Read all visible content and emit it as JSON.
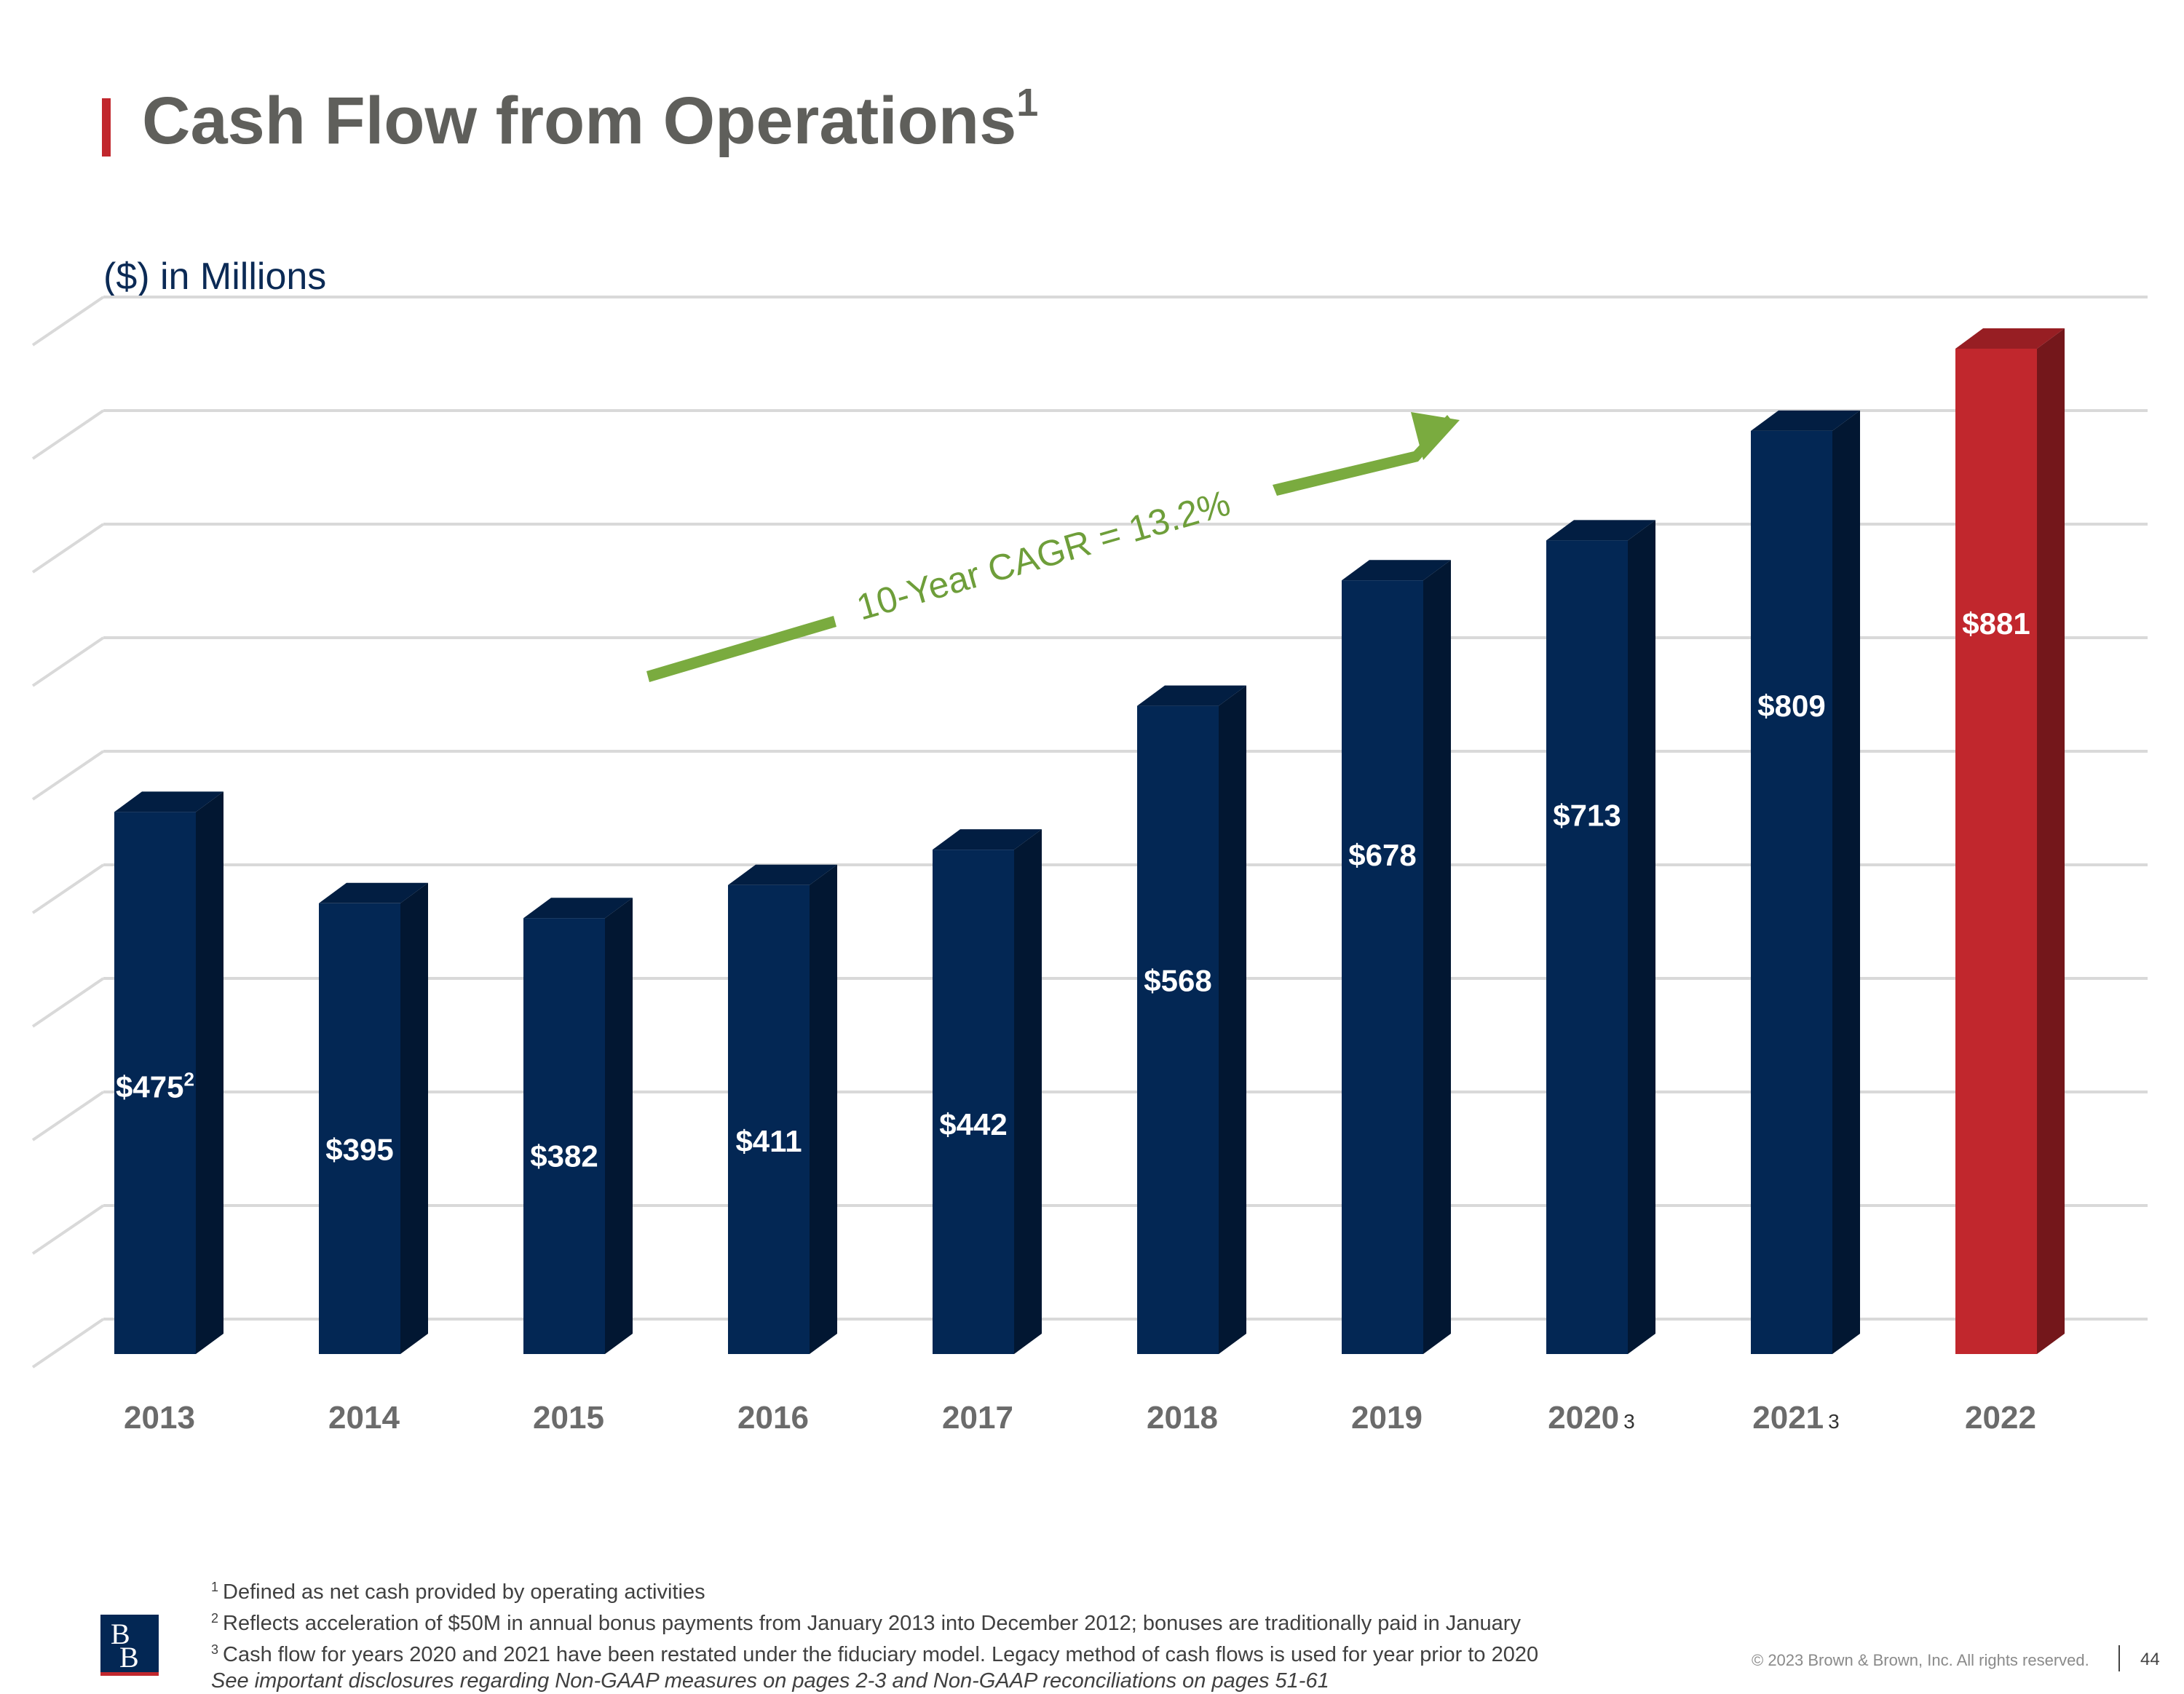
{
  "slide": {
    "title": "Cash Flow from Operations",
    "title_sup": "1",
    "units": "($) in Millions",
    "accent_color": "#c1272d"
  },
  "chart_data": {
    "type": "bar",
    "title": "Cash Flow from Operations",
    "ylabel": "($) in Millions",
    "categories": [
      "2013",
      "2014",
      "2015",
      "2016",
      "2017",
      "2018",
      "2019",
      "2020",
      "2021",
      "2022"
    ],
    "category_superscripts": [
      "",
      "",
      "",
      "",
      "",
      "",
      "",
      "3",
      "3",
      ""
    ],
    "values": [
      475,
      395,
      382,
      411,
      442,
      568,
      678,
      713,
      809,
      881
    ],
    "value_labels": [
      "$475",
      "$395",
      "$382",
      "$411",
      "$442",
      "$568",
      "$678",
      "$713",
      "$809",
      "$881"
    ],
    "value_label_superscripts": [
      "2",
      "",
      "",
      "",
      "",
      "",
      "",
      "",
      "",
      ""
    ],
    "bar_colors": [
      "#032754",
      "#032754",
      "#032754",
      "#032754",
      "#032754",
      "#032754",
      "#032754",
      "#032754",
      "#032754",
      "#c1272d"
    ],
    "ylim": [
      0,
      925
    ],
    "grid": true,
    "annotation": {
      "text": "10-Year CAGR = 13.2%",
      "color": "#6e9e3a"
    }
  },
  "footnotes": [
    {
      "sup": "1",
      "text": "Defined as net cash provided by operating activities"
    },
    {
      "sup": "2",
      "text": "Reflects acceleration of $50M in annual bonus payments from January 2013 into December 2012; bonuses are traditionally paid in January"
    },
    {
      "sup": "3",
      "text": "Cash flow for years 2020 and 2021 have been restated under the fiduciary model. Legacy method of cash flows is used for year prior to 2020"
    }
  ],
  "disclosure": "See important disclosures regarding Non-GAAP measures on pages 2-3 and Non-GAAP reconciliations on pages 51-61",
  "footer": {
    "logo_text": "BB",
    "copyright": "© 2023 Brown & Brown, Inc. All rights reserved.",
    "page_number": "44"
  }
}
